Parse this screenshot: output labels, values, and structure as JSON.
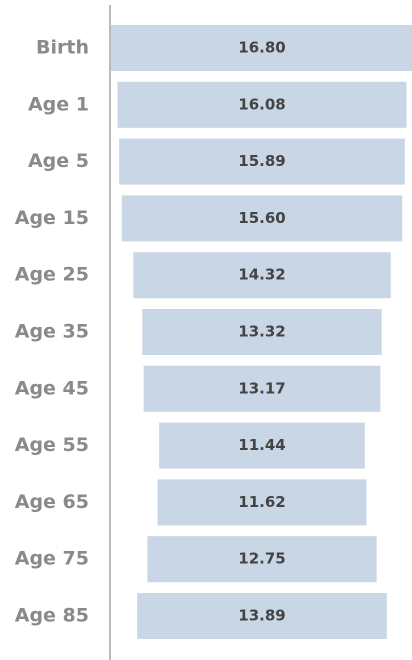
{
  "chart_data": {
    "type": "funnel",
    "categories": [
      "Birth",
      "Age 1",
      "Age 5",
      "Age 15",
      "Age 25",
      "Age 35",
      "Age 45",
      "Age 55",
      "Age 65",
      "Age 75",
      "Age 85"
    ],
    "values": [
      16.8,
      16.08,
      15.89,
      15.6,
      14.32,
      13.32,
      13.17,
      11.44,
      11.62,
      12.75,
      13.89
    ],
    "value_labels": [
      "16.80",
      "16.08",
      "15.89",
      "15.60",
      "14.32",
      "13.32",
      "13.17",
      "11.44",
      "11.62",
      "12.75",
      "13.89"
    ],
    "color": "#c9d6e6"
  }
}
